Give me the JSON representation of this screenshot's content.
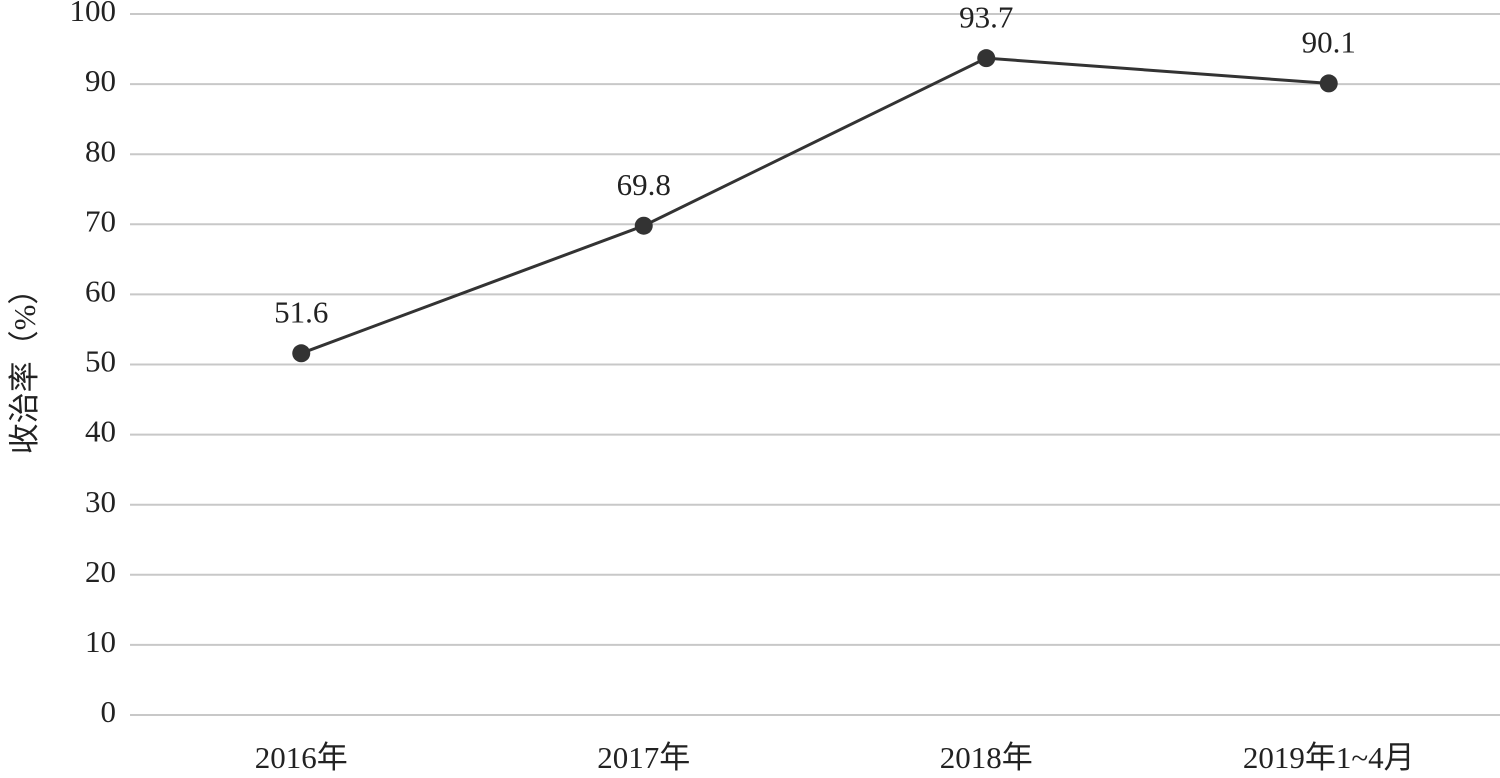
{
  "chart_data": {
    "type": "line",
    "y_label": "收治率（%）",
    "categories": [
      "2016年",
      "2017年",
      "2018年",
      "2019年1~4月"
    ],
    "values": [
      51.6,
      69.8,
      93.7,
      90.1
    ],
    "color": "#333333",
    "ylim": [
      0,
      100
    ],
    "yticks": [
      0,
      10,
      20,
      30,
      40,
      50,
      60,
      70,
      80,
      90,
      100
    ],
    "grid": true
  }
}
